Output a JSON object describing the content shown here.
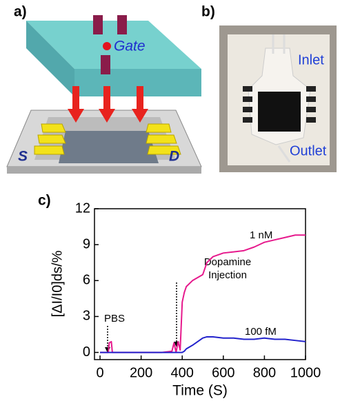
{
  "panels": {
    "a": {
      "label": "a)",
      "gate": "Gate",
      "source": "S",
      "drain": "D"
    },
    "b": {
      "label": "b)",
      "inlet": "Inlet",
      "outlet": "Outlet"
    },
    "c": {
      "label": "c)"
    }
  },
  "chart_data": {
    "type": "line",
    "x_label": "Time (S)",
    "y_label": "[ΔI/I0]ds/%",
    "annotations": [
      "1 nM",
      "100 fM",
      "Dopamine",
      "Injection",
      "PBS"
    ],
    "x": [
      0,
      40,
      45,
      55,
      60,
      100,
      200,
      300,
      350,
      360,
      370,
      380,
      390,
      400,
      410,
      420,
      450,
      500,
      520,
      550,
      600,
      650,
      700,
      750,
      800,
      850,
      900,
      950,
      1000
    ],
    "series": [
      {
        "name": "1 nM",
        "color": "#e6198c",
        "values": [
          0,
          0,
          0.8,
          0.9,
          0,
          0,
          0,
          0,
          0.1,
          0.8,
          0,
          0.9,
          0.2,
          4.2,
          5.0,
          5.5,
          6.0,
          6.5,
          7.5,
          8.0,
          8.3,
          8.4,
          8.5,
          8.8,
          9.2,
          9.4,
          9.6,
          9.8,
          9.8
        ]
      },
      {
        "name": "100 fM",
        "color": "#2222cc",
        "values": [
          0,
          0,
          0,
          0,
          0,
          0,
          0,
          0,
          0,
          0,
          0,
          0,
          0,
          0,
          0.1,
          0.3,
          0.6,
          1.2,
          1.3,
          1.3,
          1.2,
          1.2,
          1.1,
          1.1,
          1.2,
          1.1,
          1.1,
          1.0,
          0.9
        ]
      }
    ],
    "xlim": [
      -27,
      1000
    ],
    "xticks": [
      0,
      200,
      400,
      600,
      800,
      1000
    ],
    "ylim": [
      -0.6,
      12
    ],
    "yticks": [
      0,
      3,
      6,
      9,
      12
    ]
  }
}
